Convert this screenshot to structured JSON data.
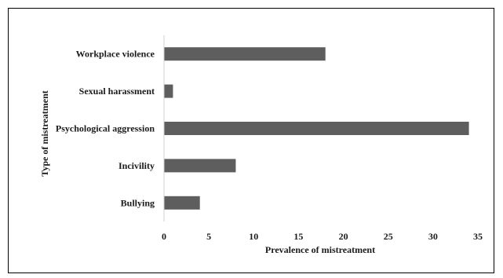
{
  "chart_data": {
    "type": "bar",
    "orientation": "horizontal",
    "title": "",
    "xlabel": "Prevalence of mistreatment",
    "ylabel": "Type of mistreatment",
    "categories": [
      "Workplace violence",
      "Sexual harassment",
      "Psychological aggression",
      "Incivility",
      "Bullying"
    ],
    "values": [
      18,
      1,
      34,
      8,
      4
    ],
    "xlim": [
      0,
      35
    ],
    "xticks": [
      "0",
      "5",
      "10",
      "15",
      "20",
      "25",
      "30",
      "35"
    ],
    "grid": false,
    "legend": "none",
    "bar_color": "#5e5e5e"
  }
}
